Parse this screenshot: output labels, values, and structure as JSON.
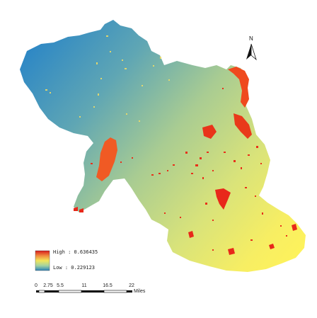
{
  "map": {
    "north_label": "N",
    "legend": {
      "high_label": "High : 0.636435",
      "low_label": "Low : 0.229123",
      "ramp": [
        "#d7191c",
        "#f08a3e",
        "#f2e65a",
        "#a4d3a0",
        "#2b83ba"
      ]
    },
    "scale_bar": {
      "ticks": [
        "0",
        "2.75",
        "5.5",
        "11",
        "16.5",
        "22"
      ],
      "unit": "Miles"
    },
    "colors": {
      "low_blue": "#2b8cc4",
      "mid_green": "#9cc48f",
      "high_yellow": "#fff25a",
      "hotspot_red": "#e8281a",
      "hotspot_orange": "#f36b1f"
    }
  }
}
